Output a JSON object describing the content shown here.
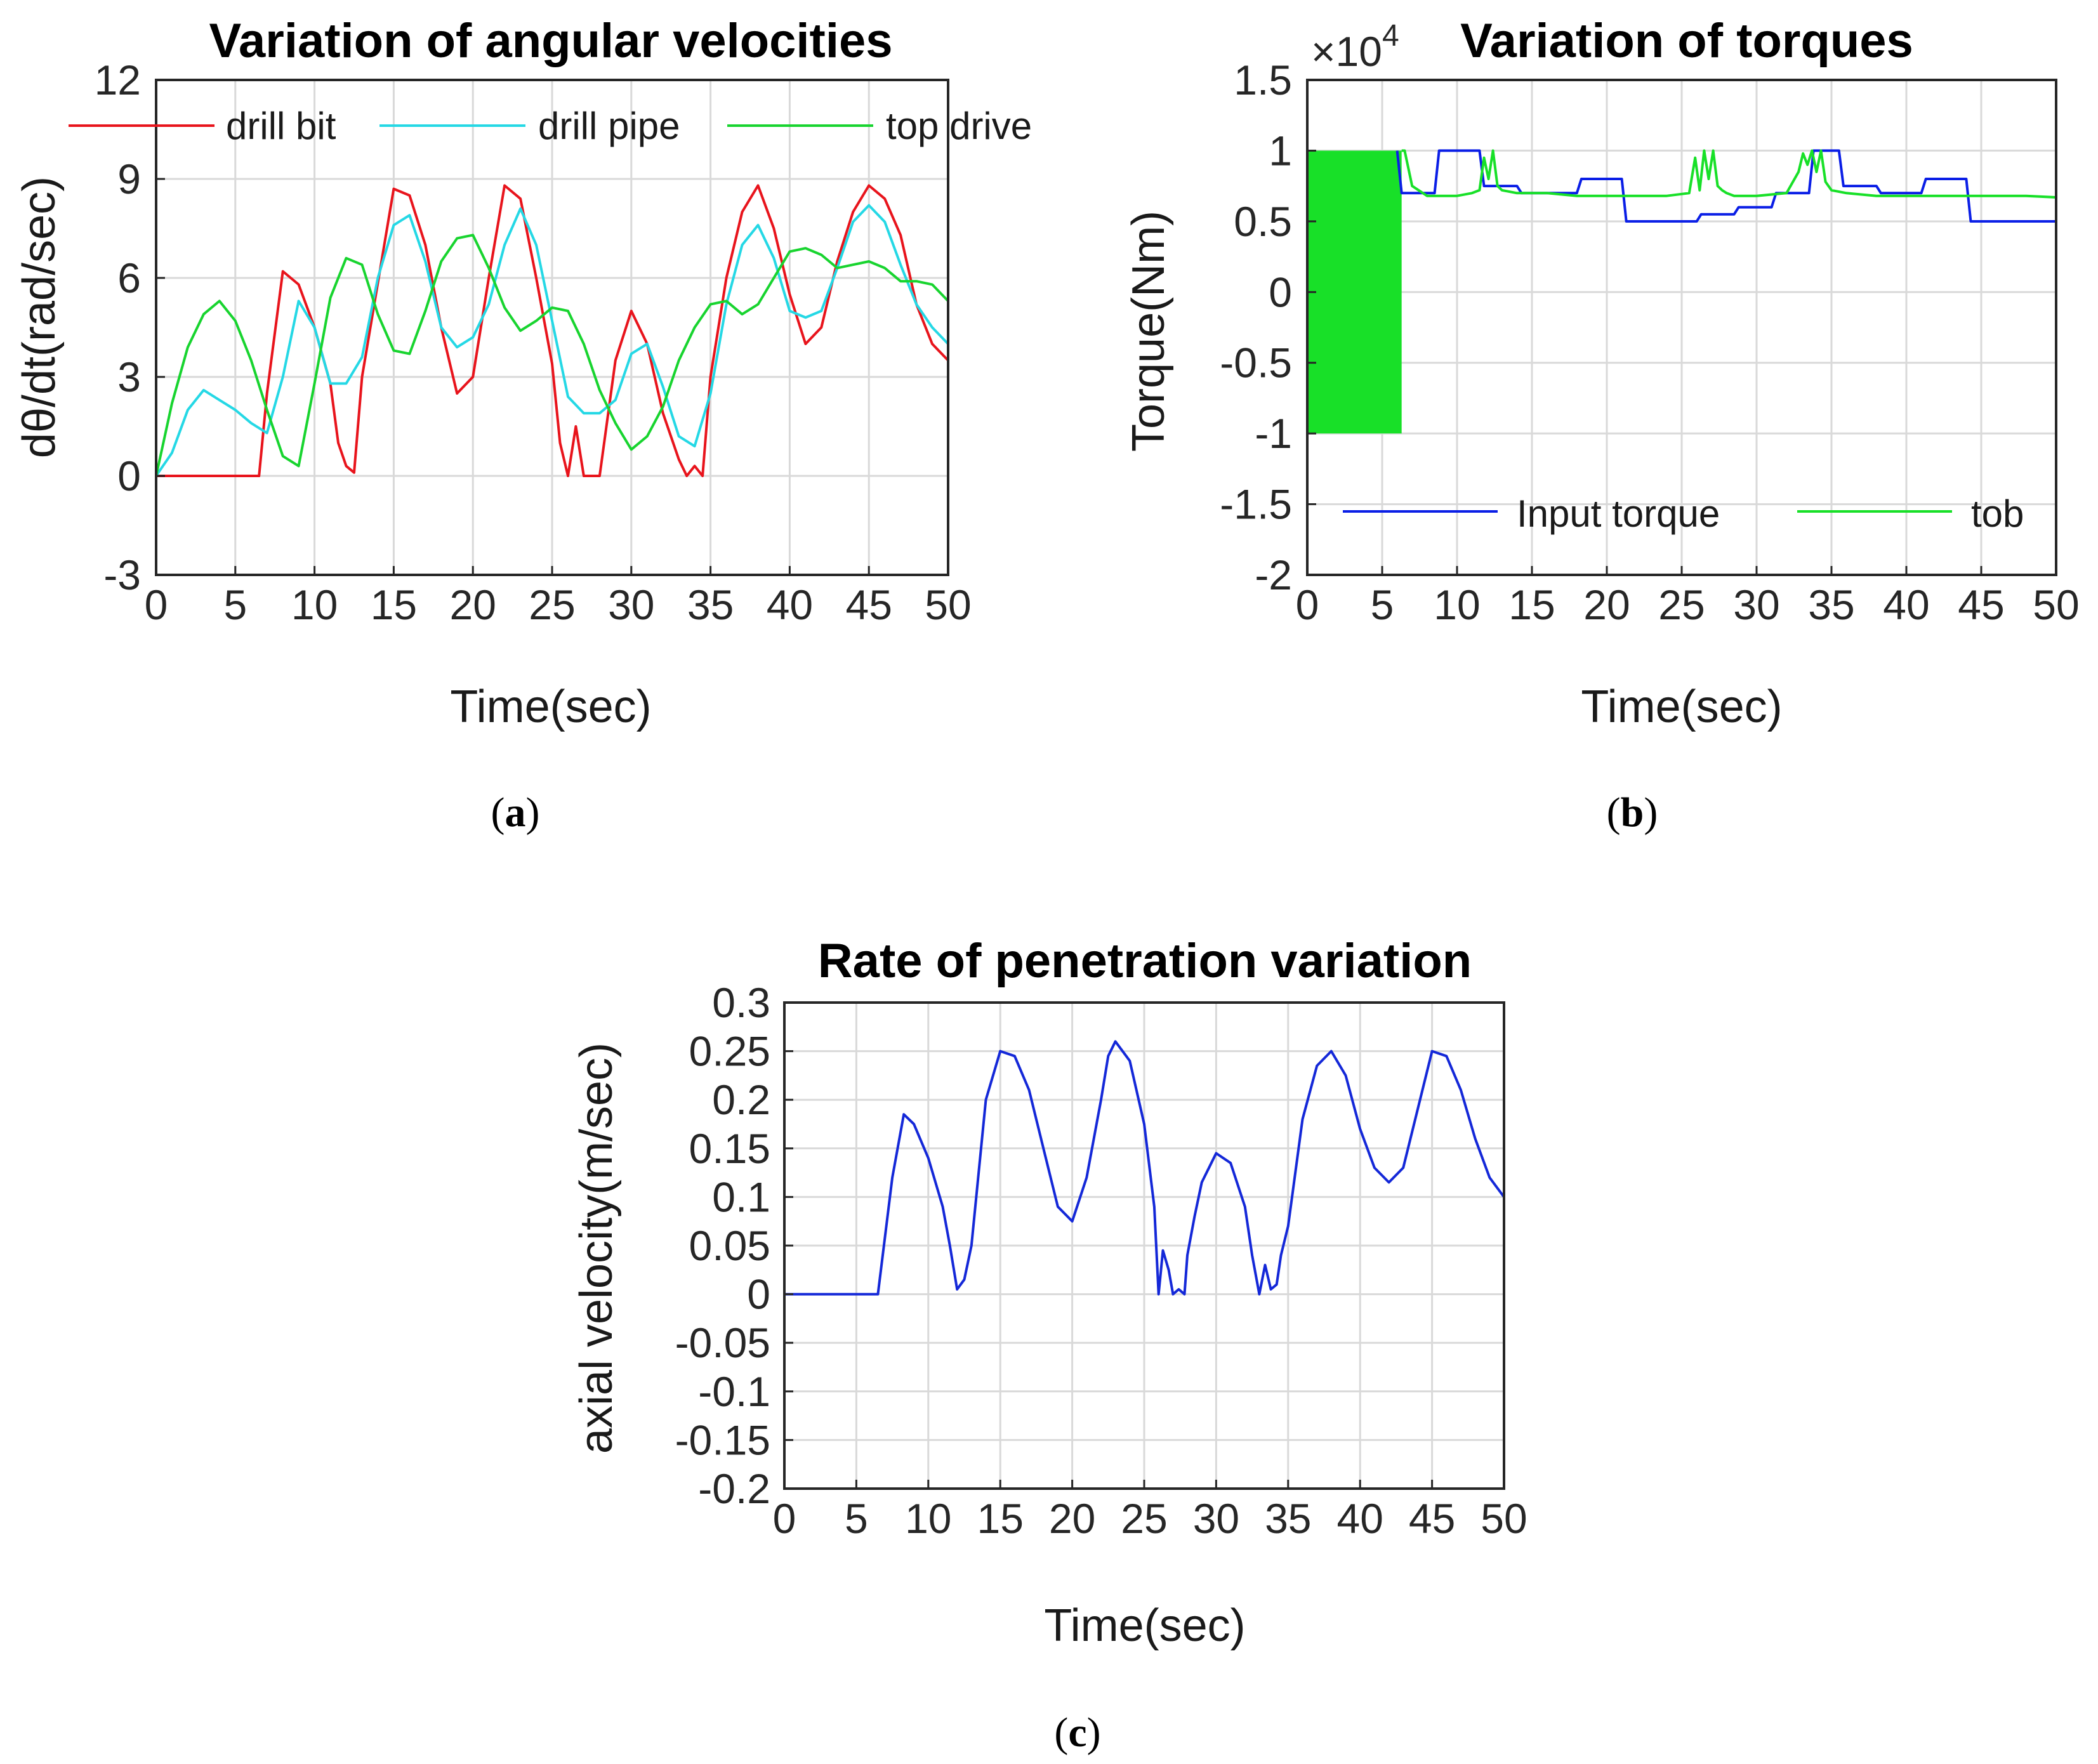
{
  "chart_data": [
    {
      "type": "line",
      "panel": "a",
      "caption": "a",
      "title": "Variation of angular velocities",
      "xlabel": "Time(sec)",
      "ylabel": "dθ/dt(rad/sec)",
      "xlim": [
        0,
        50
      ],
      "ylim": [
        -3,
        12
      ],
      "xticks": [
        "0",
        "5",
        "10",
        "15",
        "20",
        "25",
        "30",
        "35",
        "40",
        "45",
        "50"
      ],
      "yticks": [
        "-3",
        "0",
        "3",
        "6",
        "9",
        "12"
      ],
      "grid": true,
      "legend_position": "top",
      "series": [
        {
          "name": "drill bit",
          "color": "#e8141c",
          "x": [
            0,
            6.5,
            7,
            8,
            9,
            10,
            11,
            11.5,
            12,
            12.5,
            13,
            15,
            16,
            17,
            18,
            19,
            20,
            21,
            22,
            23,
            24,
            25,
            25.5,
            26,
            26.5,
            27,
            28,
            29,
            30,
            31,
            32,
            33,
            33.5,
            34,
            34.5,
            35,
            36,
            37,
            38,
            39,
            40,
            41,
            42,
            43,
            44,
            45,
            46,
            47,
            48,
            49,
            50
          ],
          "y": [
            0,
            0,
            2.5,
            6.2,
            5.8,
            4.5,
            2.8,
            1,
            0.3,
            0.1,
            3,
            8.7,
            8.5,
            7,
            4.5,
            2.5,
            3,
            6,
            8.8,
            8.4,
            6,
            3.4,
            1,
            0,
            1.5,
            0,
            0,
            3.5,
            5,
            4,
            1.9,
            0.5,
            0,
            0.3,
            0,
            3,
            6,
            8,
            8.8,
            7.5,
            5.5,
            4,
            4.5,
            6.5,
            8,
            8.8,
            8.4,
            7.3,
            5.2,
            4,
            3.5
          ]
        },
        {
          "name": "drill pipe",
          "color": "#25d8e5",
          "x": [
            0,
            1,
            2,
            3,
            4,
            5,
            6,
            7,
            8,
            9,
            10,
            11,
            12,
            13,
            14,
            15,
            16,
            17,
            18,
            19,
            20,
            21,
            22,
            23,
            24,
            25,
            26,
            27,
            28,
            29,
            30,
            31,
            32,
            33,
            34,
            35,
            36,
            37,
            38,
            39,
            40,
            41,
            42,
            43,
            44,
            45,
            46,
            47,
            48,
            49,
            50
          ],
          "y": [
            0,
            0.7,
            2,
            2.6,
            2.3,
            2,
            1.6,
            1.3,
            3,
            5.3,
            4.5,
            2.8,
            2.8,
            3.6,
            6,
            7.6,
            7.9,
            6.5,
            4.5,
            3.9,
            4.2,
            5.2,
            7,
            8.1,
            7,
            4.7,
            2.4,
            1.9,
            1.9,
            2.3,
            3.7,
            4,
            2.7,
            1.2,
            0.9,
            2.5,
            5.2,
            7,
            7.6,
            6.6,
            5,
            4.8,
            5,
            6.3,
            7.7,
            8.2,
            7.7,
            6.4,
            5.2,
            4.5,
            4
          ]
        },
        {
          "name": "top drive",
          "color": "#18d42f",
          "x": [
            0,
            1,
            2,
            3,
            4,
            5,
            6,
            7,
            8,
            9,
            10,
            11,
            12,
            13,
            14,
            15,
            16,
            17,
            18,
            19,
            20,
            21,
            22,
            23,
            24,
            25,
            26,
            27,
            28,
            29,
            30,
            31,
            32,
            33,
            34,
            35,
            36,
            37,
            38,
            39,
            40,
            41,
            42,
            43,
            44,
            45,
            46,
            47,
            48,
            49,
            50
          ],
          "y": [
            0,
            2.2,
            3.9,
            4.9,
            5.3,
            4.7,
            3.5,
            2,
            0.6,
            0.3,
            2.8,
            5.4,
            6.6,
            6.4,
            4.9,
            3.8,
            3.7,
            5,
            6.5,
            7.2,
            7.3,
            6.3,
            5.1,
            4.4,
            4.7,
            5.1,
            5,
            4,
            2.6,
            1.6,
            0.8,
            1.2,
            2.1,
            3.5,
            4.5,
            5.2,
            5.3,
            4.9,
            5.2,
            6,
            6.8,
            6.9,
            6.7,
            6.3,
            6.4,
            6.5,
            6.3,
            5.9,
            5.9,
            5.8,
            5.3
          ]
        }
      ]
    },
    {
      "type": "line",
      "panel": "b",
      "caption": "b",
      "title": "Variation of torques",
      "exponent_label": "×10",
      "exponent_power": "4",
      "xlabel": "Time(sec)",
      "ylabel": "Torque(Nm)",
      "xlim": [
        0,
        50
      ],
      "ylim": [
        -2,
        1.5
      ],
      "xticks": [
        "0",
        "5",
        "10",
        "15",
        "20",
        "25",
        "30",
        "35",
        "40",
        "45",
        "50"
      ],
      "yticks": [
        "-2",
        "-1.5",
        "-1",
        "-0.5",
        "0",
        "0.5",
        "1",
        "1.5"
      ],
      "grid": true,
      "legend_position": "bottom",
      "series": [
        {
          "name": "Input torque",
          "color": "#0a1ee6",
          "x": [
            6,
            6.3,
            8.5,
            8.8,
            11.5,
            11.8,
            14,
            14.3,
            18,
            18.3,
            21,
            21.3,
            26,
            26.3,
            28.5,
            28.8,
            31,
            31.3,
            33.5,
            33.8,
            35.5,
            35.8,
            38,
            38.3,
            41,
            41.3,
            44,
            44.3,
            46,
            46.3,
            50
          ],
          "y": [
            1,
            0.7,
            0.7,
            1,
            1,
            0.75,
            0.75,
            0.7,
            0.7,
            0.8,
            0.8,
            0.5,
            0.5,
            0.55,
            0.55,
            0.6,
            0.6,
            0.7,
            0.7,
            1,
            1,
            0.75,
            0.75,
            0.7,
            0.7,
            0.8,
            0.8,
            0.5,
            0.5,
            0.5,
            0.5
          ]
        },
        {
          "name": "tob",
          "color": "#18e028",
          "x": [
            6.3,
            6.5,
            7,
            8,
            10,
            11,
            11.5,
            11.8,
            12.1,
            12.4,
            12.7,
            13,
            14,
            16,
            18,
            20,
            22,
            24,
            25.5,
            25.9,
            26.2,
            26.5,
            26.8,
            27.1,
            27.4,
            27.7,
            28,
            28.5,
            30,
            32,
            32.8,
            33.1,
            33.4,
            33.7,
            34,
            34.3,
            34.6,
            35,
            36,
            38,
            40,
            42,
            44,
            46,
            48,
            50
          ],
          "y": [
            1,
            1,
            0.75,
            0.68,
            0.68,
            0.7,
            0.72,
            0.95,
            0.8,
            1,
            0.75,
            0.72,
            0.7,
            0.7,
            0.68,
            0.68,
            0.68,
            0.68,
            0.7,
            0.95,
            0.72,
            1,
            0.8,
            1,
            0.75,
            0.72,
            0.7,
            0.68,
            0.68,
            0.7,
            0.85,
            0.98,
            0.9,
            1,
            0.85,
            1,
            0.78,
            0.72,
            0.7,
            0.68,
            0.68,
            0.68,
            0.68,
            0.68,
            0.68,
            0.67
          ]
        }
      ],
      "annotation": "tob oscillates between 1 and -1 from 0 to 6.3 sec"
    },
    {
      "type": "line",
      "panel": "c",
      "caption": "c",
      "title": "Rate of penetration variation",
      "xlabel": "Time(sec)",
      "ylabel": "axial velocity(m/sec)",
      "xlim": [
        0,
        50
      ],
      "ylim": [
        -0.2,
        0.3
      ],
      "xticks": [
        "0",
        "5",
        "10",
        "15",
        "20",
        "25",
        "30",
        "35",
        "40",
        "45",
        "50"
      ],
      "yticks": [
        "-0.2",
        "-0.15",
        "-0.1",
        "-0.05",
        "0",
        "0.05",
        "0.1",
        "0.15",
        "0.2",
        "0.25",
        "0.3"
      ],
      "grid": true,
      "series": [
        {
          "name": "axial velocity",
          "color": "#1428d8",
          "x": [
            0,
            6.5,
            7.5,
            8.3,
            9,
            10,
            11,
            11.5,
            12,
            12.5,
            13,
            14,
            15,
            16,
            17,
            18,
            19,
            20,
            21,
            22,
            22.5,
            23,
            24,
            25,
            25.7,
            26,
            26.3,
            26.7,
            27,
            27.4,
            27.8,
            28,
            28.5,
            29,
            30,
            31,
            32,
            32.5,
            33,
            33.4,
            33.8,
            34.2,
            34.5,
            35,
            36,
            37,
            38,
            39,
            40,
            41,
            42,
            43,
            44,
            45,
            46,
            47,
            48,
            49,
            50
          ],
          "y": [
            0,
            0,
            0.12,
            0.185,
            0.175,
            0.14,
            0.09,
            0.05,
            0.005,
            0.015,
            0.05,
            0.2,
            0.25,
            0.245,
            0.21,
            0.15,
            0.09,
            0.075,
            0.12,
            0.2,
            0.245,
            0.26,
            0.24,
            0.175,
            0.09,
            0,
            0.045,
            0.025,
            0,
            0.005,
            0,
            0.04,
            0.08,
            0.115,
            0.145,
            0.135,
            0.09,
            0.04,
            0,
            0.03,
            0.005,
            0.01,
            0.04,
            0.07,
            0.18,
            0.235,
            0.25,
            0.225,
            0.17,
            0.13,
            0.115,
            0.13,
            0.19,
            0.25,
            0.245,
            0.21,
            0.16,
            0.12,
            0.1
          ]
        }
      ]
    }
  ]
}
